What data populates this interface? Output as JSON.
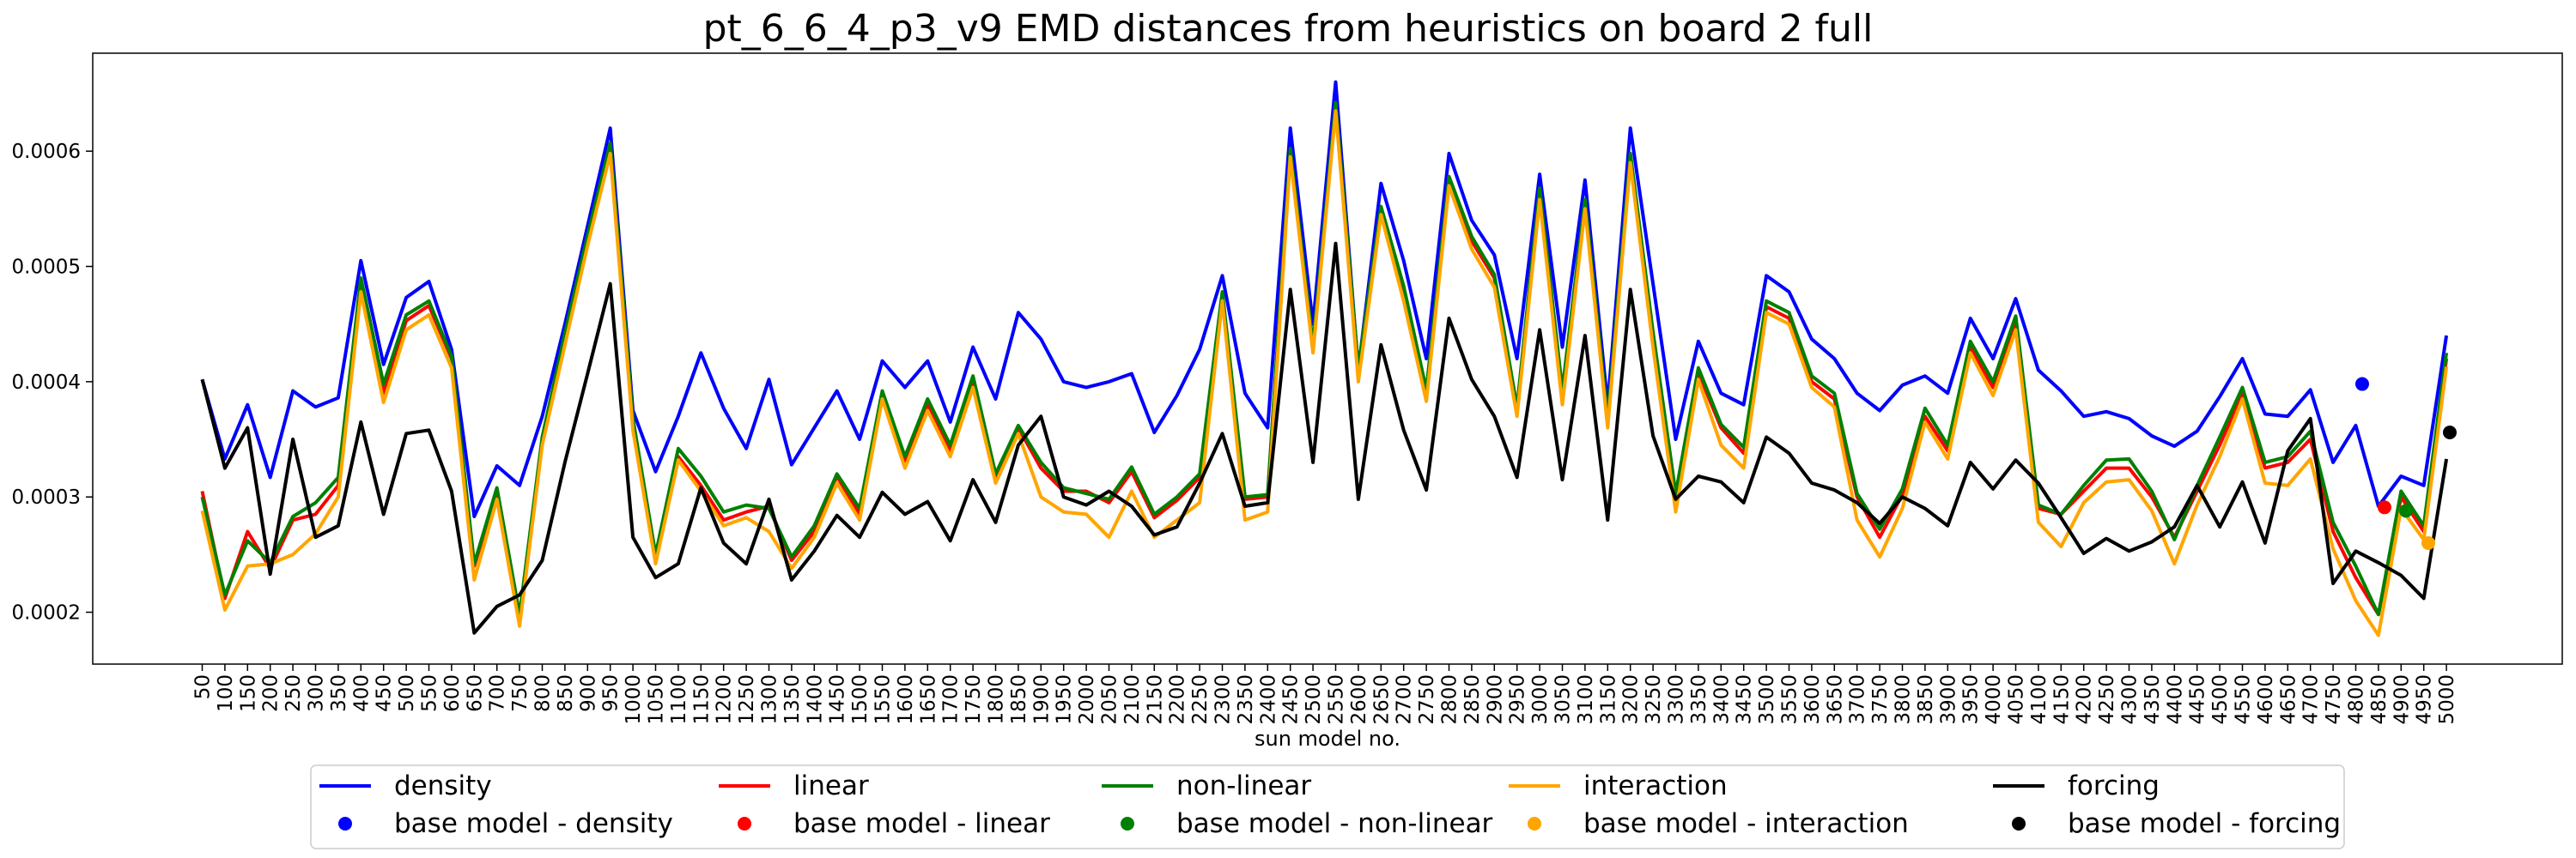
{
  "chart_data": {
    "type": "line",
    "title": "pt_6_6_4_p3_v9 EMD distances from heuristics on board 2 full",
    "xlabel": "sun model no.",
    "ylabel": "",
    "ylim": [
      0.000155,
      0.000685
    ],
    "yticks": [
      0.0002,
      0.0003,
      0.0004,
      0.0005,
      0.0006
    ],
    "ytick_labels": [
      "0.0002",
      "0.0003",
      "0.0004",
      "0.0005",
      "0.0006"
    ],
    "grid": false,
    "legend_position": "bottom-center",
    "x": [
      "50",
      "100",
      "150",
      "200",
      "250",
      "300",
      "350",
      "400",
      "450",
      "500",
      "550",
      "600",
      "650",
      "700",
      "750",
      "800",
      "850",
      "900",
      "950",
      "1000",
      "1050",
      "1100",
      "1150",
      "1200",
      "1250",
      "1300",
      "1350",
      "1400",
      "1450",
      "1500",
      "1550",
      "1600",
      "1650",
      "1700",
      "1750",
      "1800",
      "1850",
      "1900",
      "1950",
      "2000",
      "2050",
      "2100",
      "2150",
      "2200",
      "2250",
      "2300",
      "2350",
      "2400",
      "2450",
      "2500",
      "2550",
      "2600",
      "2650",
      "2700",
      "2750",
      "2800",
      "2850",
      "2900",
      "2950",
      "3000",
      "3050",
      "3100",
      "3150",
      "3200",
      "3250",
      "3300",
      "3350",
      "3400",
      "3450",
      "3500",
      "3550",
      "3600",
      "3650",
      "3700",
      "3750",
      "3800",
      "3850",
      "3900",
      "3950",
      "4000",
      "4050",
      "4100",
      "4150",
      "4200",
      "4250",
      "4300",
      "4350",
      "4400",
      "4450",
      "4500",
      "4550",
      "4600",
      "4650",
      "4700",
      "4750",
      "4800",
      "4850",
      "4900",
      "4950",
      "5000"
    ],
    "series": [
      {
        "name": "density",
        "color": "#0000ff",
        "values": [
          0.000402,
          0.000333,
          0.00038,
          0.000317,
          0.000392,
          0.000378,
          0.000386,
          0.000505,
          0.000415,
          0.000473,
          0.000487,
          0.000428,
          0.000283,
          0.000327,
          0.00031,
          0.00037,
          0.00045,
          0.000535,
          0.00062,
          0.000375,
          0.000322,
          0.00037,
          0.000425,
          0.000377,
          0.000342,
          0.000402,
          0.000328,
          0.00036,
          0.000392,
          0.00035,
          0.000418,
          0.000395,
          0.000418,
          0.000365,
          0.00043,
          0.000385,
          0.00046,
          0.000437,
          0.0004,
          0.000395,
          0.0004,
          0.000407,
          0.000356,
          0.000388,
          0.000428,
          0.000492,
          0.00039,
          0.00036,
          0.00062,
          0.00045,
          0.00066,
          0.00041,
          0.000572,
          0.000505,
          0.00042,
          0.000598,
          0.00054,
          0.00051,
          0.00042,
          0.00058,
          0.00043,
          0.000575,
          0.00038,
          0.00062,
          0.000485,
          0.00035,
          0.000435,
          0.00039,
          0.00038,
          0.000492,
          0.000478,
          0.000437,
          0.00042,
          0.00039,
          0.000375,
          0.000397,
          0.000405,
          0.00039,
          0.000455,
          0.00042,
          0.000472,
          0.00041,
          0.000392,
          0.00037,
          0.000374,
          0.000368,
          0.000353,
          0.000344,
          0.000357,
          0.000387,
          0.00042,
          0.000372,
          0.00037,
          0.000393,
          0.00033,
          0.000362,
          0.000292,
          0.000318,
          0.00031,
          0.00044
        ]
      },
      {
        "name": "linear",
        "color": "#ff0000",
        "values": [
          0.000305,
          0.000212,
          0.00027,
          0.000238,
          0.00028,
          0.000285,
          0.00031,
          0.000485,
          0.00039,
          0.000453,
          0.000466,
          0.00042,
          0.00024,
          0.000305,
          0.000195,
          0.00035,
          0.00044,
          0.000525,
          0.000605,
          0.000365,
          0.000246,
          0.000335,
          0.00031,
          0.00028,
          0.000287,
          0.000292,
          0.000245,
          0.00027,
          0.000318,
          0.000285,
          0.00039,
          0.00033,
          0.00038,
          0.00034,
          0.0004,
          0.000318,
          0.00036,
          0.000325,
          0.000305,
          0.000305,
          0.000295,
          0.000322,
          0.000282,
          0.000297,
          0.000317,
          0.000475,
          0.000298,
          0.0003,
          0.0006,
          0.00043,
          0.00064,
          0.00041,
          0.00055,
          0.00048,
          0.00039,
          0.000575,
          0.000522,
          0.00049,
          0.000375,
          0.000565,
          0.00039,
          0.000555,
          0.000365,
          0.000595,
          0.00044,
          0.0003,
          0.000408,
          0.00036,
          0.000338,
          0.000465,
          0.000455,
          0.0004,
          0.000385,
          0.0003,
          0.000265,
          0.000302,
          0.00037,
          0.00034,
          0.00043,
          0.000395,
          0.000452,
          0.00029,
          0.000285,
          0.000305,
          0.000325,
          0.000325,
          0.0003,
          0.000265,
          0.000305,
          0.000345,
          0.00039,
          0.000325,
          0.00033,
          0.00035,
          0.00027,
          0.00023,
          0.000198,
          0.0003,
          0.00027,
          0.00042
        ]
      },
      {
        "name": "non-linear",
        "color": "#008000",
        "values": [
          0.0003,
          0.000215,
          0.000262,
          0.000243,
          0.000283,
          0.000295,
          0.000317,
          0.00049,
          0.000398,
          0.000458,
          0.00047,
          0.000422,
          0.000242,
          0.000308,
          0.000198,
          0.000352,
          0.000442,
          0.000527,
          0.000607,
          0.000368,
          0.00025,
          0.000342,
          0.000318,
          0.000287,
          0.000293,
          0.00029,
          0.000248,
          0.000275,
          0.00032,
          0.00029,
          0.000392,
          0.000335,
          0.000385,
          0.000345,
          0.000405,
          0.00032,
          0.000362,
          0.00033,
          0.000308,
          0.000303,
          0.000298,
          0.000326,
          0.000285,
          0.0003,
          0.00032,
          0.000478,
          0.0003,
          0.000302,
          0.000602,
          0.000432,
          0.000642,
          0.000412,
          0.000552,
          0.000483,
          0.000393,
          0.000578,
          0.000526,
          0.000493,
          0.000378,
          0.000568,
          0.000393,
          0.000558,
          0.000368,
          0.000598,
          0.000443,
          0.000303,
          0.000412,
          0.000363,
          0.000343,
          0.00047,
          0.00046,
          0.000405,
          0.00039,
          0.000303,
          0.000272,
          0.000307,
          0.000377,
          0.000345,
          0.000435,
          0.0004,
          0.000457,
          0.000293,
          0.000285,
          0.00031,
          0.000332,
          0.000333,
          0.000305,
          0.000263,
          0.00031,
          0.000352,
          0.000395,
          0.00033,
          0.000335,
          0.000357,
          0.000278,
          0.00024,
          0.000198,
          0.000305,
          0.000275,
          0.000425
        ]
      },
      {
        "name": "interaction",
        "color": "#ffa500",
        "values": [
          0.000288,
          0.000202,
          0.00024,
          0.000242,
          0.00025,
          0.000268,
          0.0003,
          0.000478,
          0.000382,
          0.000445,
          0.000458,
          0.000412,
          0.000228,
          0.000298,
          0.000188,
          0.000345,
          0.000432,
          0.000518,
          0.000598,
          0.000358,
          0.000242,
          0.000332,
          0.000305,
          0.000275,
          0.000282,
          0.00027,
          0.000238,
          0.000265,
          0.000312,
          0.00028,
          0.000385,
          0.000325,
          0.000375,
          0.000335,
          0.000395,
          0.000312,
          0.000355,
          0.0003,
          0.000287,
          0.000285,
          0.000265,
          0.000305,
          0.000265,
          0.00028,
          0.000295,
          0.00047,
          0.00028,
          0.000287,
          0.000595,
          0.000425,
          0.000635,
          0.0004,
          0.000545,
          0.00047,
          0.000383,
          0.00057,
          0.000515,
          0.000482,
          0.00037,
          0.000558,
          0.00038,
          0.00055,
          0.00036,
          0.00059,
          0.00043,
          0.000287,
          0.000402,
          0.000345,
          0.000325,
          0.00046,
          0.00045,
          0.000395,
          0.000378,
          0.00028,
          0.000248,
          0.00029,
          0.000365,
          0.000333,
          0.000425,
          0.000388,
          0.000445,
          0.000278,
          0.000257,
          0.000295,
          0.000313,
          0.000315,
          0.000288,
          0.000242,
          0.000293,
          0.000335,
          0.000385,
          0.000312,
          0.00031,
          0.000333,
          0.000255,
          0.00021,
          0.00018,
          0.00029,
          0.000263,
          0.000413
        ]
      },
      {
        "name": "forcing",
        "color": "#000000",
        "values": [
          0.000402,
          0.000325,
          0.00036,
          0.000233,
          0.00035,
          0.000265,
          0.000275,
          0.000365,
          0.000285,
          0.000355,
          0.000358,
          0.000305,
          0.000182,
          0.000205,
          0.000215,
          0.000245,
          0.00033,
          0.000407,
          0.000485,
          0.000265,
          0.00023,
          0.000242,
          0.000308,
          0.00026,
          0.000242,
          0.000298,
          0.000228,
          0.000253,
          0.000284,
          0.000265,
          0.000304,
          0.000285,
          0.000296,
          0.000262,
          0.000315,
          0.000278,
          0.000345,
          0.00037,
          0.0003,
          0.000293,
          0.000305,
          0.000292,
          0.000267,
          0.000274,
          0.000312,
          0.000355,
          0.000292,
          0.000295,
          0.00048,
          0.00033,
          0.00052,
          0.000298,
          0.000432,
          0.000358,
          0.000306,
          0.000455,
          0.000402,
          0.00037,
          0.000317,
          0.000445,
          0.000315,
          0.00044,
          0.00028,
          0.00048,
          0.000353,
          0.000298,
          0.000318,
          0.000313,
          0.000295,
          0.000352,
          0.000338,
          0.000312,
          0.000306,
          0.000295,
          0.000277,
          0.0003,
          0.00029,
          0.000275,
          0.00033,
          0.000307,
          0.000332,
          0.000312,
          0.000282,
          0.000251,
          0.000264,
          0.000253,
          0.000261,
          0.000274,
          0.00031,
          0.000274,
          0.000313,
          0.00026,
          0.00034,
          0.000368,
          0.000225,
          0.000253,
          0.000243,
          0.000232,
          0.000212,
          0.000333
        ]
      }
    ],
    "base_models": [
      {
        "name": "base model - density",
        "color": "#0000ff",
        "value": 0.000398
      },
      {
        "name": "base model - linear",
        "color": "#ff0000",
        "value": 0.000291
      },
      {
        "name": "base model - non-linear",
        "color": "#008000",
        "value": 0.000288
      },
      {
        "name": "base model - interaction",
        "color": "#ffa500",
        "value": 0.00026
      },
      {
        "name": "base model - forcing",
        "color": "#000000",
        "value": 0.000356
      }
    ],
    "legend": [
      {
        "label": "density",
        "kind": "line",
        "color": "#0000ff"
      },
      {
        "label": "linear",
        "kind": "line",
        "color": "#ff0000"
      },
      {
        "label": "non-linear",
        "kind": "line",
        "color": "#008000"
      },
      {
        "label": "interaction",
        "kind": "line",
        "color": "#ffa500"
      },
      {
        "label": "forcing",
        "kind": "line",
        "color": "#000000"
      },
      {
        "label": "base model - density",
        "kind": "dot",
        "color": "#0000ff"
      },
      {
        "label": "base model - linear",
        "kind": "dot",
        "color": "#ff0000"
      },
      {
        "label": "base model - non-linear",
        "kind": "dot",
        "color": "#008000"
      },
      {
        "label": "base model - interaction",
        "kind": "dot",
        "color": "#ffa500"
      },
      {
        "label": "base model - forcing",
        "kind": "dot",
        "color": "#000000"
      }
    ]
  }
}
